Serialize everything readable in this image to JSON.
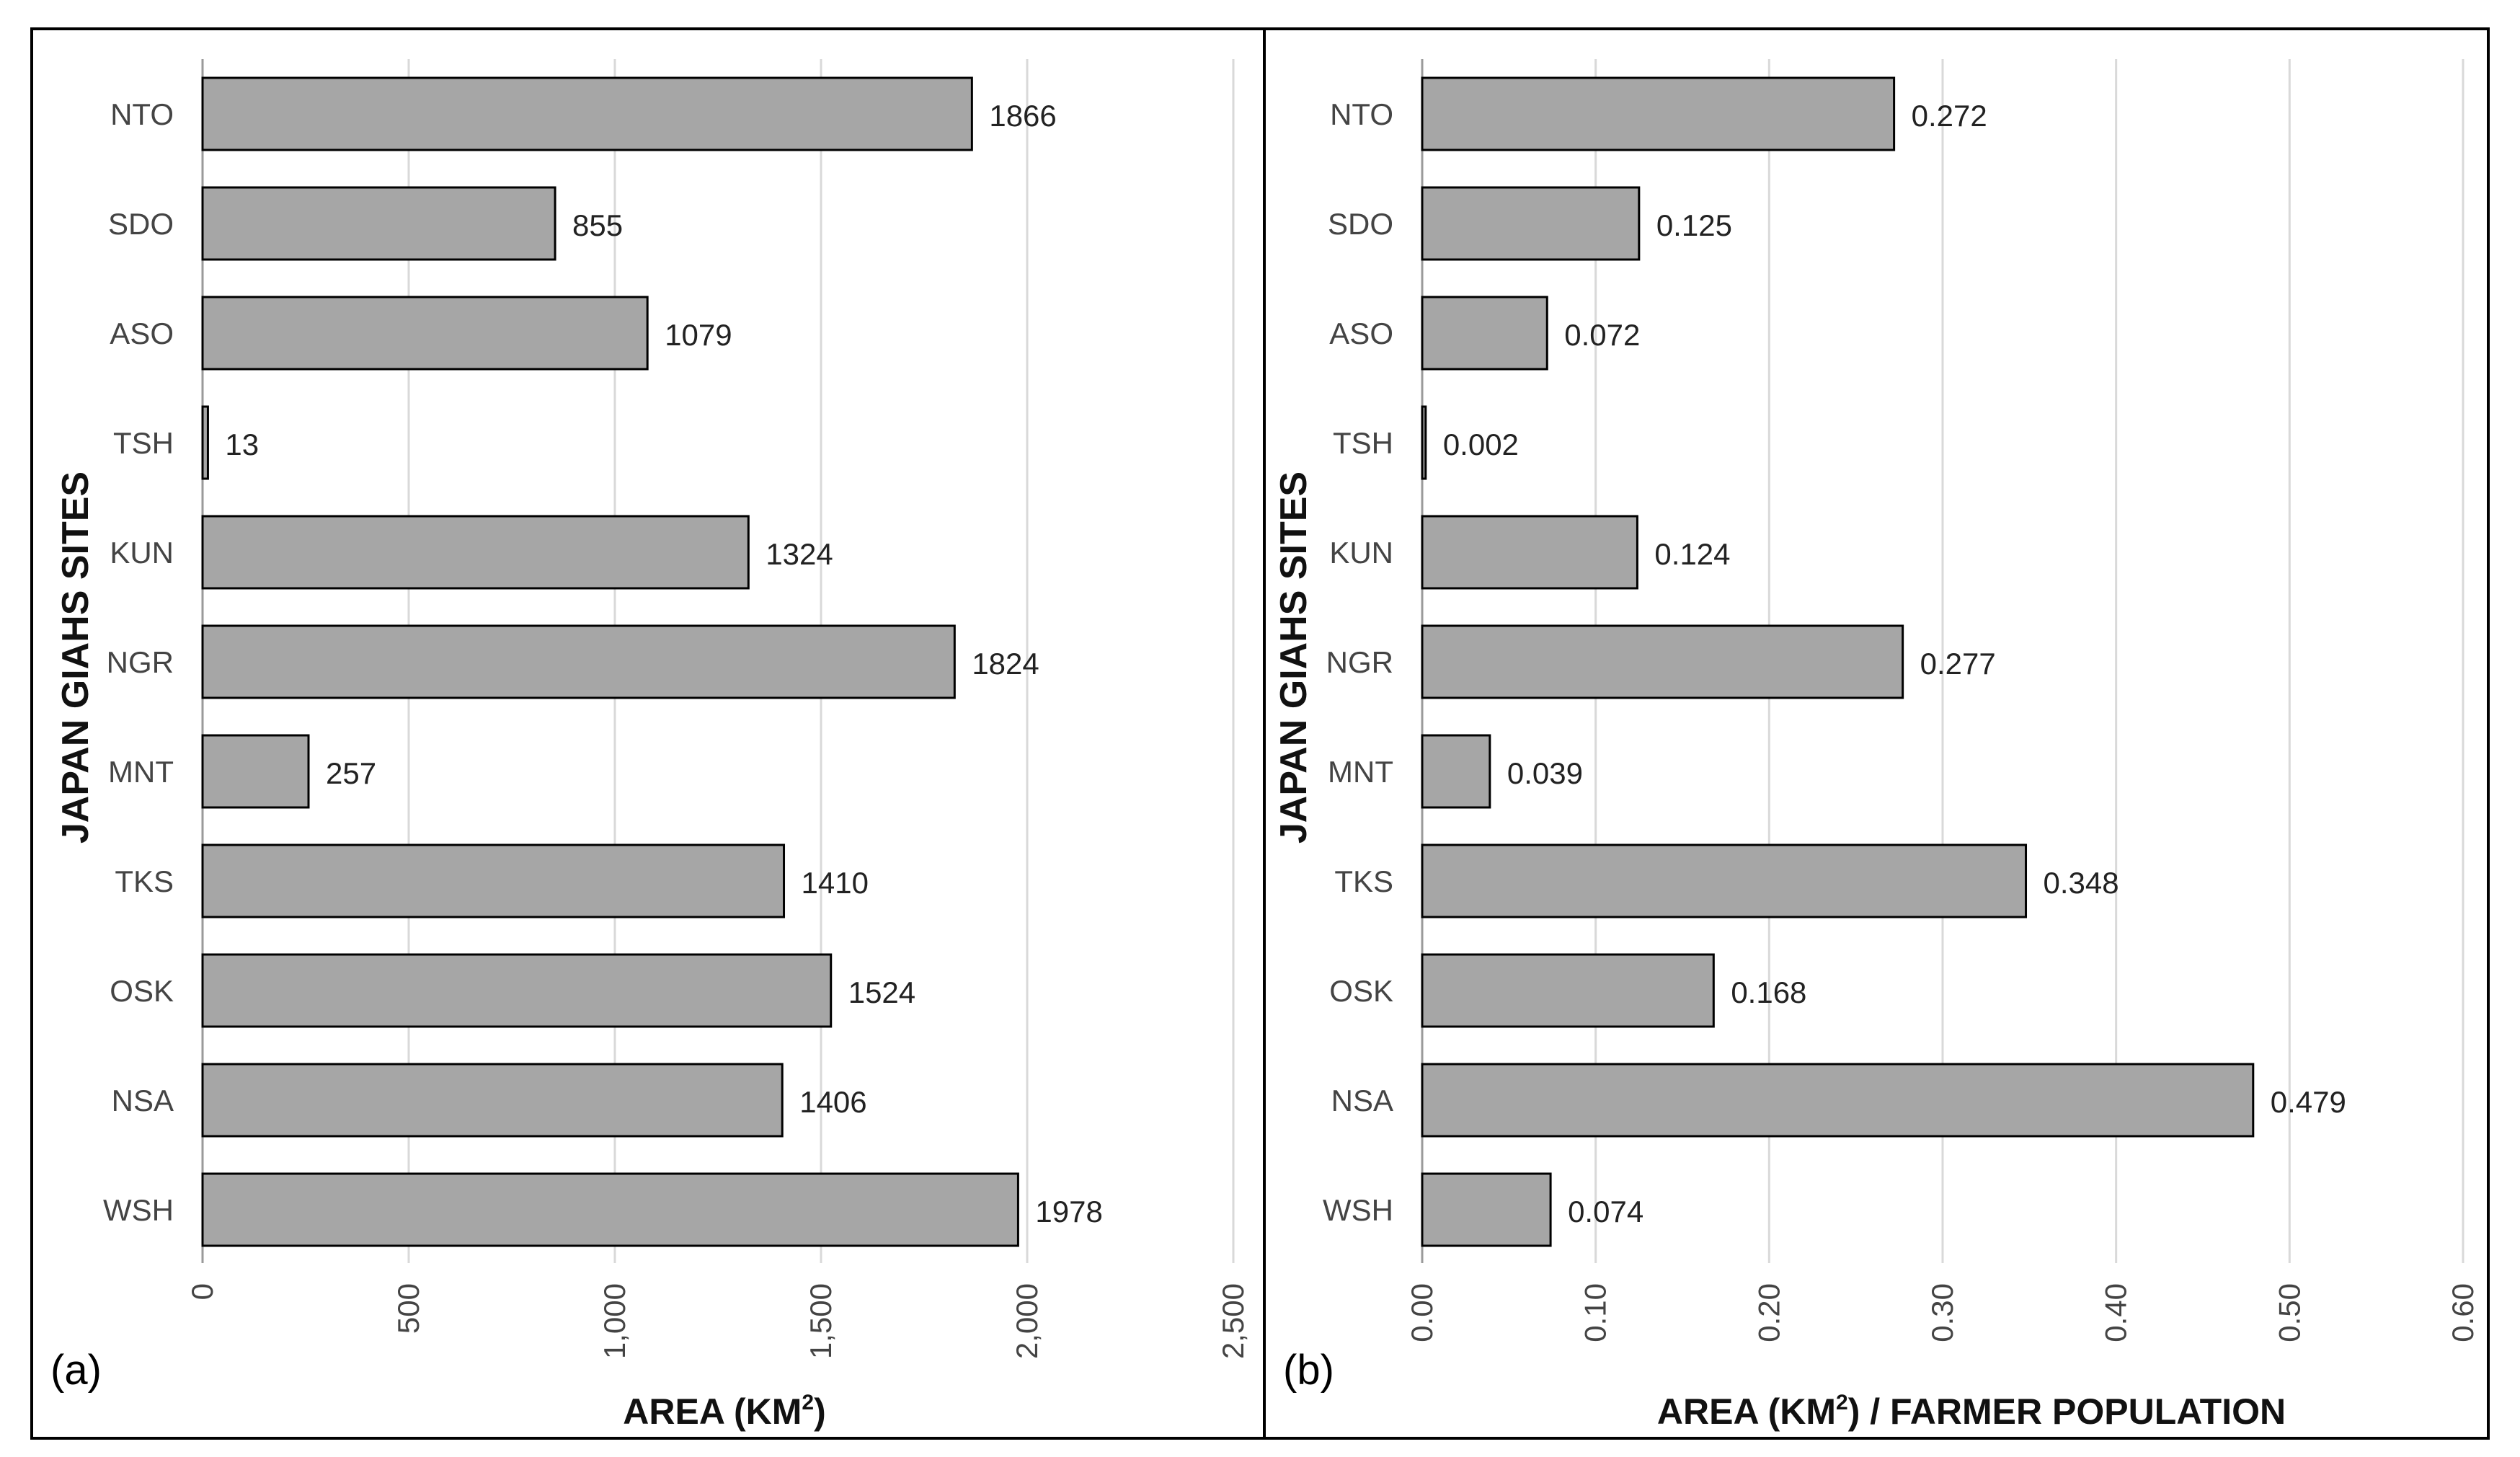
{
  "chart_data": [
    {
      "type": "bar",
      "orientation": "horizontal",
      "panel_label": "(a)",
      "categories": [
        "NTO",
        "SDO",
        "ASO",
        "TSH",
        "KUN",
        "NGR",
        "MNT",
        "TKS",
        "OSK",
        "NSA",
        "WSH"
      ],
      "values": [
        1866,
        855,
        1079,
        13,
        1324,
        1824,
        257,
        1410,
        1524,
        1406,
        1978
      ],
      "value_labels": [
        "1866",
        "855",
        "1079",
        "13",
        "1324",
        "1824",
        "257",
        "1410",
        "1524",
        "1406",
        "1978"
      ],
      "xlabel_main": "AREA (KM",
      "xlabel_sup": "2",
      "xlabel_tail": ")",
      "ylabel": "JAPAN GIAHS SITES",
      "xlim": [
        0,
        2500
      ],
      "ticks": [
        0,
        500,
        1000,
        1500,
        2000,
        2500
      ],
      "tick_labels": [
        "0",
        "500",
        "1,000",
        "1,500",
        "2,000",
        "2,500"
      ],
      "grid": true,
      "bar_color": "#a6a6a6",
      "bar_edge_color": "#000000"
    },
    {
      "type": "bar",
      "orientation": "horizontal",
      "panel_label": "(b)",
      "categories": [
        "NTO",
        "SDO",
        "ASO",
        "TSH",
        "KUN",
        "NGR",
        "MNT",
        "TKS",
        "OSK",
        "NSA",
        "WSH"
      ],
      "values": [
        0.272,
        0.125,
        0.072,
        0.002,
        0.124,
        0.277,
        0.039,
        0.348,
        0.168,
        0.479,
        0.074
      ],
      "value_labels": [
        "0.272",
        "0.125",
        "0.072",
        "0.002",
        "0.124",
        "0.277",
        "0.039",
        "0.348",
        "0.168",
        "0.479",
        "0.074"
      ],
      "xlabel_main": "AREA (KM",
      "xlabel_sup": "2",
      "xlabel_tail": ") / FARMER POPULATION",
      "ylabel": "JAPAN GIAHS SITES",
      "xlim": [
        0,
        0.6
      ],
      "ticks": [
        0,
        0.1,
        0.2,
        0.3,
        0.4,
        0.5,
        0.6
      ],
      "tick_labels": [
        "0.00",
        "0.10",
        "0.20",
        "0.30",
        "0.40",
        "0.50",
        "0.60"
      ],
      "grid": true,
      "bar_color": "#a6a6a6",
      "bar_edge_color": "#000000"
    }
  ]
}
